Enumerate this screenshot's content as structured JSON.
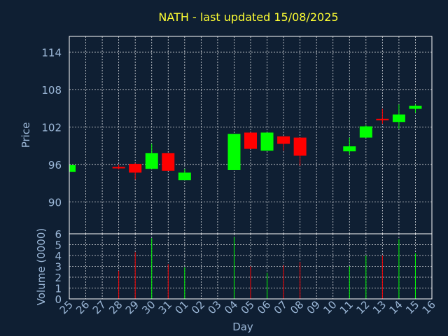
{
  "chart_data": {
    "type": "candlestick",
    "title": "NATH - last updated 15/08/2025",
    "xlabel": "Day",
    "price_panel": {
      "ylabel": "Price",
      "ylim": [
        84.9,
        116.5
      ],
      "yticks": [
        90,
        96,
        102,
        108,
        114
      ]
    },
    "volume_panel": {
      "ylabel": "Volume (0000)",
      "ylim": [
        0,
        6
      ],
      "yticks": [
        0,
        1,
        2,
        3,
        4,
        5,
        6
      ]
    },
    "x_tick_labels": [
      "25",
      "26",
      "27",
      "28",
      "29",
      "30",
      "31",
      "01",
      "02",
      "03",
      "04",
      "05",
      "06",
      "07",
      "08",
      "09",
      "10",
      "11",
      "12",
      "13",
      "14",
      "15",
      "16"
    ],
    "colors": {
      "up": "#00ff00",
      "down": "#ff0000"
    },
    "candles": [
      {
        "day": "25",
        "open": 94.8,
        "high": 95.9,
        "low": 94.6,
        "close": 95.9,
        "volume": 0
      },
      {
        "day": "28",
        "open": 95.6,
        "high": 96.0,
        "low": 95.2,
        "close": 95.4,
        "volume": 2.6
      },
      {
        "day": "29",
        "open": 96.1,
        "high": 96.2,
        "low": 93.6,
        "close": 94.7,
        "volume": 4.3
      },
      {
        "day": "30",
        "open": 95.3,
        "high": 99.3,
        "low": 95.3,
        "close": 97.8,
        "volume": 5.6
      },
      {
        "day": "31",
        "open": 97.8,
        "high": 97.8,
        "low": 95.0,
        "close": 95.0,
        "volume": 3.2
      },
      {
        "day": "01",
        "open": 93.5,
        "high": 95.3,
        "low": 93.5,
        "close": 94.7,
        "volume": 2.9
      },
      {
        "day": "04",
        "open": 95.1,
        "high": 100.9,
        "low": 95.1,
        "close": 100.9,
        "volume": 5.7
      },
      {
        "day": "05",
        "open": 101.1,
        "high": 101.1,
        "low": 98.5,
        "close": 98.5,
        "volume": 3.0
      },
      {
        "day": "06",
        "open": 98.2,
        "high": 101.1,
        "low": 98.2,
        "close": 101.1,
        "volume": 2.4
      },
      {
        "day": "07",
        "open": 100.5,
        "high": 100.5,
        "low": 98.2,
        "close": 99.3,
        "volume": 3.1
      },
      {
        "day": "08",
        "open": 100.3,
        "high": 100.3,
        "low": 95.8,
        "close": 97.4,
        "volume": 3.4
      },
      {
        "day": "11",
        "open": 98.1,
        "high": 100.3,
        "low": 97.6,
        "close": 98.9,
        "volume": 3.0
      },
      {
        "day": "12",
        "open": 100.3,
        "high": 102.3,
        "low": 100.3,
        "close": 102.1,
        "volume": 4.0
      },
      {
        "day": "13",
        "open": 103.3,
        "high": 104.9,
        "low": 102.5,
        "close": 103.2,
        "volume": 4.0
      },
      {
        "day": "14",
        "open": 102.8,
        "high": 105.6,
        "low": 101.7,
        "close": 104.0,
        "volume": 5.5
      },
      {
        "day": "15",
        "open": 104.9,
        "high": 105.6,
        "low": 104.3,
        "close": 105.4,
        "volume": 4.2
      }
    ]
  }
}
